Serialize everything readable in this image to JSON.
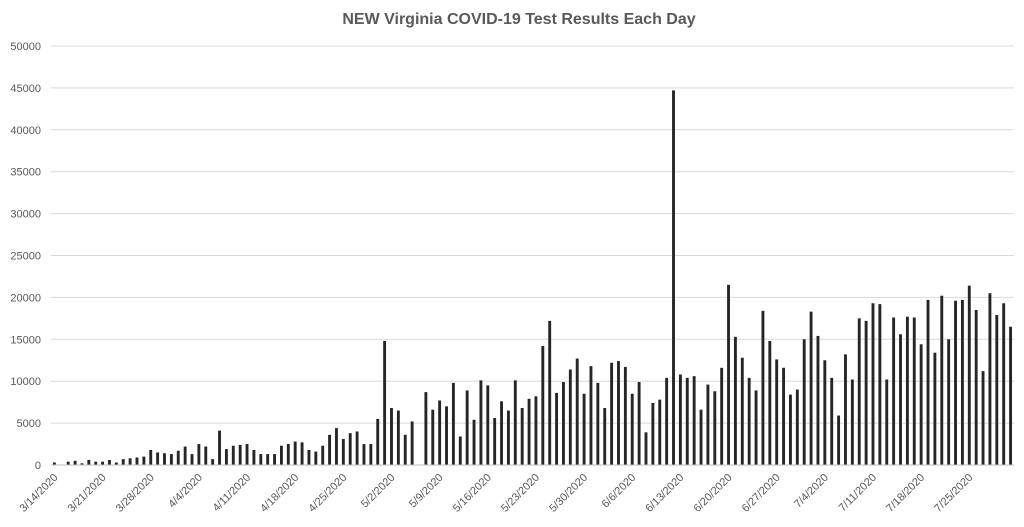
{
  "chart_data": {
    "type": "bar",
    "title": "NEW Virginia COVID-19 Test Results Each Day",
    "xlabel": "",
    "ylabel": "",
    "ylim": [
      0,
      50000
    ],
    "y_ticks": [
      "0",
      "5000",
      "10000",
      "15000",
      "20000",
      "25000",
      "30000",
      "35000",
      "40000",
      "45000",
      "50000"
    ],
    "x_tick_labels": [
      "3/14/2020",
      "3/21/2020",
      "3/28/2020",
      "4/4/2020",
      "4/11/2020",
      "4/18/2020",
      "4/25/2020",
      "5/2/2020",
      "5/9/2020",
      "5/16/2020",
      "5/23/2020",
      "5/30/2020",
      "6/6/2020",
      "6/13/2020",
      "6/20/2020",
      "6/27/2020",
      "7/4/2020",
      "7/11/2020",
      "7/18/2020",
      "7/25/2020"
    ],
    "start_date": "3/14/2020",
    "grid": true,
    "legend": "none",
    "bar_color": "#262626",
    "series": [
      {
        "values": [
          300,
          0,
          400,
          500,
          200,
          600,
          400,
          400,
          600,
          300,
          700,
          800,
          900,
          1000,
          1800,
          1500,
          1400,
          1300,
          1700,
          2200,
          1300,
          2500,
          2200,
          700,
          4100,
          1900,
          2300,
          2400,
          2500,
          1800,
          1300,
          1300,
          1300,
          2300,
          2500,
          2800,
          2700,
          1800,
          1600,
          2300,
          3600,
          4400,
          3100,
          3800,
          4000,
          2500,
          2500,
          5500,
          14800,
          6800,
          6500,
          3600,
          5200,
          0,
          8700,
          6600,
          7700,
          7000,
          9800,
          3400,
          8900,
          5400,
          10100,
          9500,
          5600,
          7600,
          6500,
          10100,
          6800,
          7900,
          8200,
          14200,
          17200,
          8600,
          9900,
          11400,
          12700,
          8500,
          11800,
          9800,
          6800,
          12200,
          12400,
          11700,
          8500,
          9900,
          3900,
          7400,
          7800,
          10400,
          44700,
          10800,
          10400,
          10600,
          6600,
          9600,
          8800,
          11600,
          21500,
          15300,
          12800,
          10400,
          8900,
          18400,
          14800,
          12600,
          11600,
          8400,
          9000,
          15000,
          18300,
          15400,
          12500,
          10400,
          5900,
          13200,
          10200,
          17500,
          17200,
          19300,
          19200,
          10200,
          17600,
          15600,
          17700,
          17600,
          14400,
          19700,
          13400,
          20200,
          15000,
          19600,
          19700,
          21400,
          18500,
          11200,
          20500,
          17900,
          19300,
          16500
        ]
      }
    ]
  }
}
